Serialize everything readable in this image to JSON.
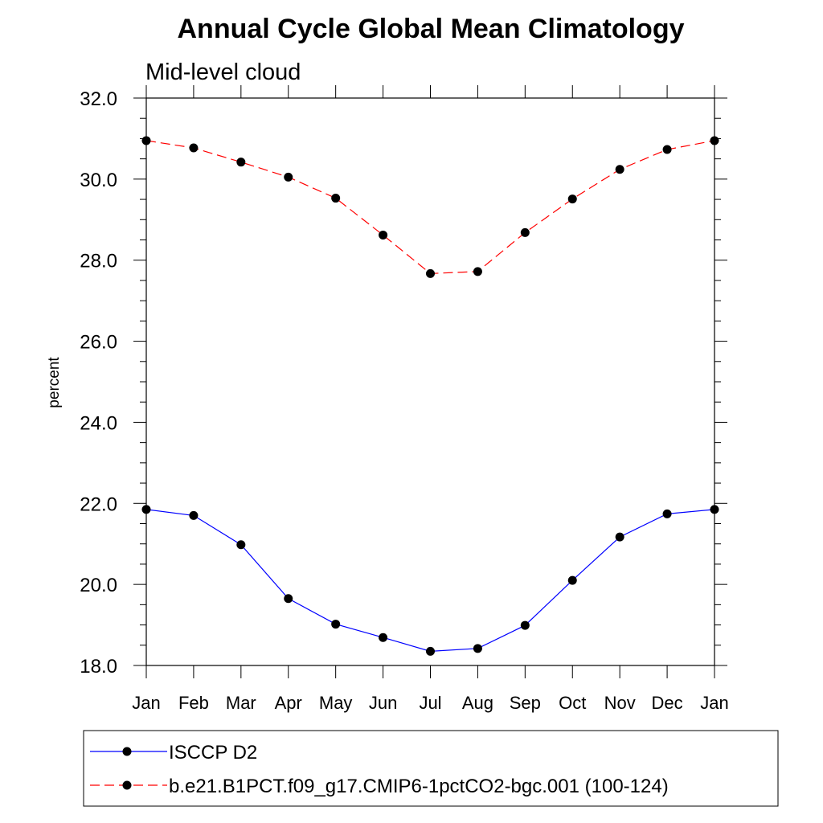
{
  "chart_data": {
    "type": "line",
    "title": "Annual Cycle Global Mean Climatology",
    "subtitle": "Mid-level cloud",
    "xlabel": "",
    "ylabel": "percent",
    "categories": [
      "Jan",
      "Feb",
      "Mar",
      "Apr",
      "May",
      "Jun",
      "Jul",
      "Aug",
      "Sep",
      "Oct",
      "Nov",
      "Dec",
      "Jan"
    ],
    "ylim": [
      18.0,
      32.0
    ],
    "yticks": [
      "18.0",
      "20.0",
      "22.0",
      "24.0",
      "26.0",
      "28.0",
      "30.0",
      "32.0"
    ],
    "series": [
      {
        "name": "ISCCP D2",
        "color": "#0000ff",
        "dash": "solid",
        "values": [
          21.85,
          21.7,
          20.98,
          19.65,
          19.02,
          18.69,
          18.35,
          18.42,
          18.99,
          20.1,
          21.17,
          21.74,
          21.85
        ]
      },
      {
        "name": "b.e21.B1PCT.f09_g17.CMIP6-1pctCO2-bgc.001 (100-124)",
        "color": "#ff0000",
        "dash": "dashed",
        "values": [
          30.95,
          30.77,
          30.42,
          30.05,
          29.53,
          28.62,
          27.67,
          27.72,
          28.68,
          29.51,
          30.24,
          30.73,
          30.95
        ]
      }
    ],
    "legend_position": "bottom"
  }
}
